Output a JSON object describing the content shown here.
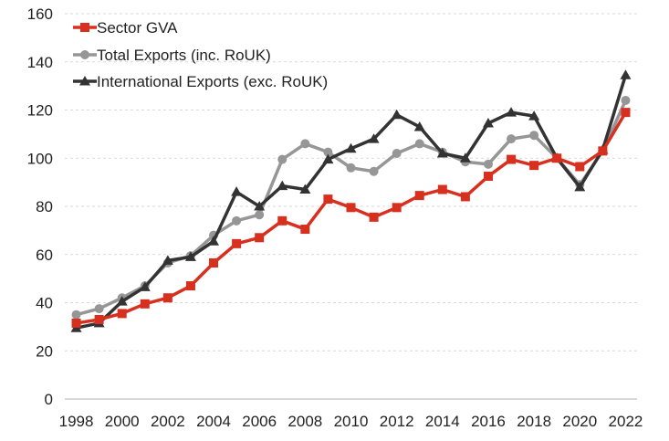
{
  "chart_data": {
    "type": "line",
    "title": "",
    "xlabel": "",
    "ylabel": "",
    "ylim": [
      0,
      160
    ],
    "yticks": [
      0,
      20,
      40,
      60,
      80,
      100,
      120,
      140,
      160
    ],
    "x": [
      1998,
      1999,
      2000,
      2001,
      2002,
      2003,
      2004,
      2005,
      2006,
      2007,
      2008,
      2009,
      2010,
      2011,
      2012,
      2013,
      2014,
      2015,
      2016,
      2017,
      2018,
      2019,
      2020,
      2021,
      2022
    ],
    "xtick_labels": [
      "1998",
      "2000",
      "2002",
      "2004",
      "2006",
      "2008",
      "2010",
      "2012",
      "2014",
      "2016",
      "2018",
      "2020",
      "2022"
    ],
    "grid": true,
    "legend_position": "top-left",
    "series": [
      {
        "name": "Sector GVA",
        "color": "#d7301f",
        "marker": "square",
        "values": [
          31.5,
          33,
          35.5,
          39.5,
          42,
          47,
          56.5,
          64.5,
          67,
          74,
          70.5,
          83,
          79.5,
          75.5,
          79.5,
          84.5,
          87,
          84,
          92.5,
          99.5,
          97,
          100,
          96.5,
          103,
          119
        ]
      },
      {
        "name": "Total Exports (inc. RoUK)",
        "color": "#969696",
        "marker": "circle",
        "values": [
          35,
          37.5,
          42,
          47,
          56.5,
          59.5,
          68,
          74,
          76.5,
          99.5,
          106,
          102.5,
          96,
          94.5,
          102,
          106,
          102.5,
          98.5,
          97.5,
          108,
          109.5,
          100,
          89,
          103,
          124
        ]
      },
      {
        "name": "International Exports (exc. RoUK)",
        "color": "#333333",
        "marker": "triangle",
        "values": [
          29.5,
          31.5,
          40.5,
          46.5,
          57.5,
          59,
          65.5,
          86,
          80,
          88.5,
          87,
          99.5,
          104,
          108,
          118,
          113,
          102,
          100,
          114.5,
          119,
          117.5,
          100,
          88,
          103.5,
          134.5
        ]
      }
    ]
  }
}
